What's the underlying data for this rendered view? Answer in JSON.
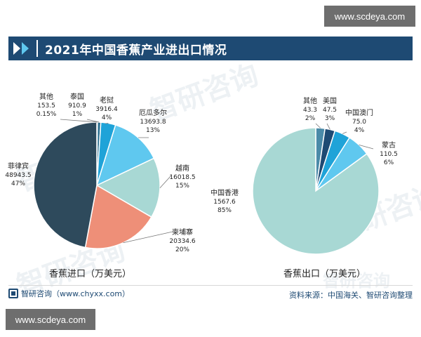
{
  "watermark_top": "www.scdeya.com",
  "watermark_bottom": "www.scdeya.com",
  "title": "2021年中国香蕉产业进出口情况",
  "background_watermark": "智研咨询",
  "footer": {
    "brand": "智研咨询（www.chyxx.com）",
    "source": "资料来源：中国海关、智研咨询整理"
  },
  "chart_data": [
    {
      "type": "pie",
      "caption": "香蕉进口（万美元）",
      "slices": [
        {
          "name": "其他",
          "value": 153.5,
          "value_label": "153.5",
          "pct_label": "0.15%",
          "color": "#1e4a73"
        },
        {
          "name": "泰国",
          "value": 910.9,
          "value_label": "910.9",
          "pct_label": "1%",
          "color": "#2a6f8f"
        },
        {
          "name": "老挝",
          "value": 3916.4,
          "value_label": "3916.4",
          "pct_label": "4%",
          "color": "#1fa3d8"
        },
        {
          "name": "厄瓜多尔",
          "value": 13693.8,
          "value_label": "13693.8",
          "pct_label": "13%",
          "color": "#5fc8ef"
        },
        {
          "name": "越南",
          "value": 16018.5,
          "value_label": "16018.5",
          "pct_label": "15%",
          "color": "#a8d8d4"
        },
        {
          "name": "柬埔寨",
          "value": 20334.6,
          "value_label": "20334.6",
          "pct_label": "20%",
          "color": "#ee8f78"
        },
        {
          "name": "菲律宾",
          "value": 48943.5,
          "value_label": "48943.5",
          "pct_label": "47%",
          "color": "#2e4a5c"
        }
      ]
    },
    {
      "type": "pie",
      "caption": "香蕉出口（万美元）",
      "slices": [
        {
          "name": "其他",
          "value": 43.3,
          "value_label": "43.3",
          "pct_label": "2%",
          "color": "#4a8aa8"
        },
        {
          "name": "美国",
          "value": 47.5,
          "value_label": "47.5",
          "pct_label": "3%",
          "color": "#1e4a73"
        },
        {
          "name": "中国澳门",
          "value": 75.0,
          "value_label": "75.0",
          "pct_label": "4%",
          "color": "#1fa3d8"
        },
        {
          "name": "蒙古",
          "value": 110.5,
          "value_label": "110.5",
          "pct_label": "6%",
          "color": "#5fc8ef"
        },
        {
          "name": "中国香港",
          "value": 1567.6,
          "value_label": "1567.6",
          "pct_label": "85%",
          "color": "#a8d8d4"
        }
      ]
    }
  ]
}
